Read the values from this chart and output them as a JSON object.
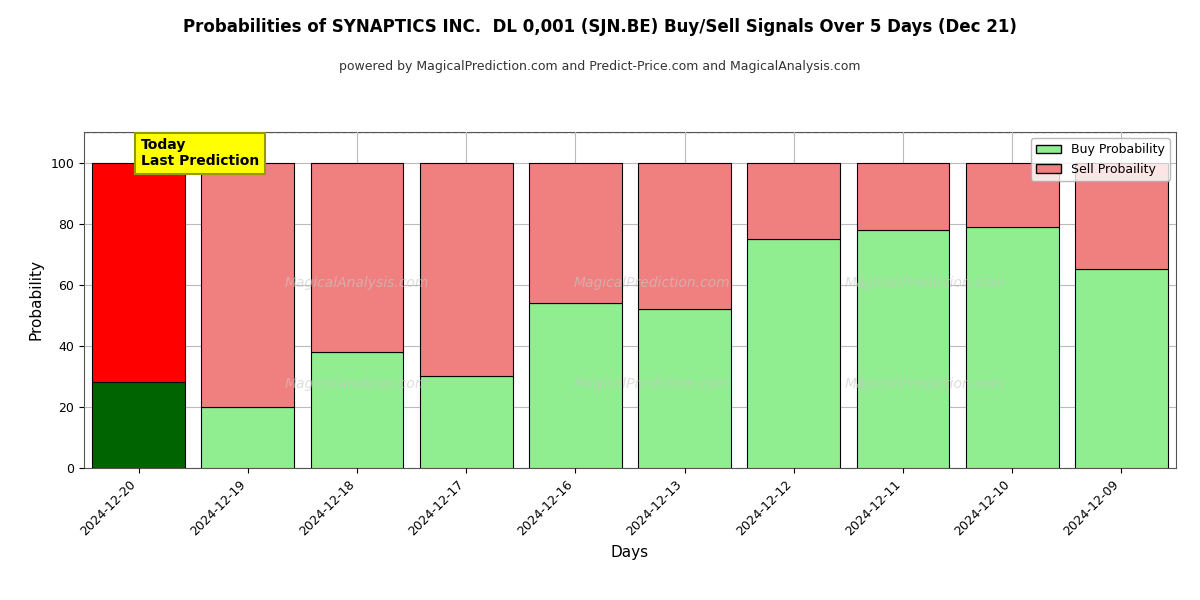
{
  "title": "Probabilities of SYNAPTICS INC.  DL 0,001 (SJN.BE) Buy/Sell Signals Over 5 Days (Dec 21)",
  "subtitle": "powered by MagicalPrediction.com and Predict-Price.com and MagicalAnalysis.com",
  "xlabel": "Days",
  "ylabel": "Probability",
  "categories": [
    "2024-12-20",
    "2024-12-19",
    "2024-12-18",
    "2024-12-17",
    "2024-12-16",
    "2024-12-13",
    "2024-12-12",
    "2024-12-11",
    "2024-12-10",
    "2024-12-09"
  ],
  "buy_values": [
    28,
    20,
    38,
    30,
    54,
    52,
    75,
    78,
    79,
    65
  ],
  "sell_values": [
    72,
    80,
    62,
    70,
    46,
    48,
    25,
    22,
    21,
    35
  ],
  "today_buy_color": "#006400",
  "today_sell_color": "#FF0000",
  "buy_color": "#90EE90",
  "sell_color": "#F08080",
  "today_label_bg": "#FFFF00",
  "today_label_text": "Today\nLast Prediction",
  "ylim": [
    0,
    110
  ],
  "yticks": [
    0,
    20,
    40,
    60,
    80,
    100
  ],
  "legend_buy": "Buy Probability",
  "legend_sell": "Sell Probaility",
  "dashed_line_y": 110,
  "background_color": "#ffffff",
  "grid_color": "#bbbbbb",
  "bar_edge_color": "#000000",
  "bar_width": 0.85
}
